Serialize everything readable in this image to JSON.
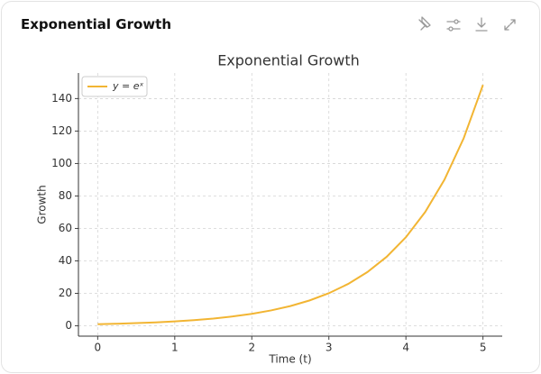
{
  "header": {
    "title": "Exponential Growth"
  },
  "chart_data": {
    "type": "line",
    "title": "Exponential Growth",
    "x_label": "Time (t)",
    "y_label": "Growth",
    "x": [
      0,
      0.25,
      0.5,
      0.75,
      1,
      1.25,
      1.5,
      1.75,
      2,
      2.25,
      2.5,
      2.75,
      3,
      3.25,
      3.5,
      3.75,
      4,
      4.25,
      4.5,
      4.75,
      5
    ],
    "series": [
      {
        "name": "y = eˣ",
        "color": "#f2b533",
        "values": [
          1,
          1.28,
          1.65,
          2.12,
          2.72,
          3.49,
          4.48,
          5.75,
          7.39,
          9.49,
          12.18,
          15.64,
          20.09,
          25.79,
          33.12,
          42.52,
          54.6,
          70.11,
          90.02,
          115.58,
          148.41
        ]
      }
    ],
    "xlim": [
      -0.25,
      5.25
    ],
    "xticks": [
      0,
      1,
      2,
      3,
      4,
      5
    ],
    "ylim": [
      -6.37,
      155.78
    ],
    "yticks": [
      0,
      20,
      40,
      60,
      80,
      100,
      120,
      140
    ],
    "grid": true,
    "legend": "upper-left"
  }
}
